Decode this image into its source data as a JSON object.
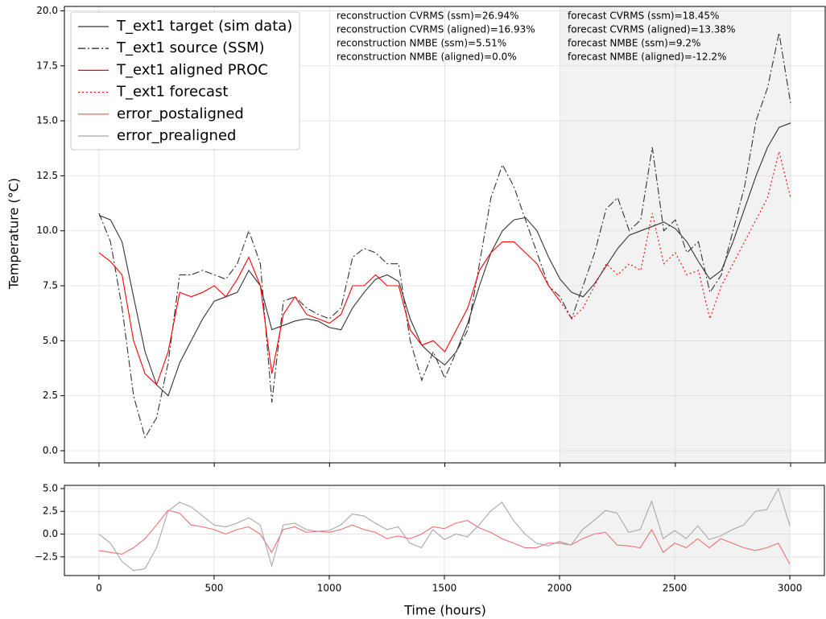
{
  "chart_data": [
    {
      "type": "line",
      "ylabel": "Temperature (°C)",
      "x": [
        0,
        50,
        100,
        150,
        200,
        250,
        300,
        350,
        400,
        450,
        500,
        550,
        600,
        650,
        700,
        750,
        800,
        850,
        900,
        950,
        1000,
        1050,
        1100,
        1150,
        1200,
        1250,
        1300,
        1350,
        1400,
        1450,
        1500,
        1550,
        1600,
        1650,
        1700,
        1750,
        1800,
        1850,
        1900,
        1950,
        2000,
        2050,
        2100,
        2150,
        2200,
        2250,
        2300,
        2350,
        2400,
        2450,
        2500,
        2550,
        2600,
        2650,
        2700,
        2750,
        2800,
        2850,
        2900,
        2950,
        3000
      ],
      "xlim": [
        -150,
        3150
      ],
      "ylim": [
        -0.55,
        20.2
      ],
      "yticks": [
        {
          "value": 0,
          "label": "0.0"
        },
        {
          "value": 2.5,
          "label": "2.5"
        },
        {
          "value": 5,
          "label": "5.0"
        },
        {
          "value": 7.5,
          "label": "7.5"
        },
        {
          "value": 10,
          "label": "10.0"
        },
        {
          "value": 12.5,
          "label": "12.5"
        },
        {
          "value": 15,
          "label": "15.0"
        },
        {
          "value": 17.5,
          "label": "17.5"
        },
        {
          "value": 20,
          "label": "20.0"
        }
      ],
      "grid": true,
      "legend": "upper left",
      "shaded_span": [
        2000,
        3000
      ],
      "series": [
        {
          "name": "T_ext1 target (sim data)",
          "color": "#333333",
          "linestyle": "solid",
          "values": [
            10.7,
            10.5,
            9.5,
            7.0,
            4.5,
            3.0,
            2.5,
            4.0,
            5.0,
            6.0,
            6.8,
            7.0,
            7.2,
            8.2,
            7.5,
            5.5,
            5.7,
            5.9,
            6.0,
            5.9,
            5.6,
            5.5,
            6.5,
            7.2,
            7.8,
            8.0,
            7.7,
            6.0,
            4.8,
            4.3,
            3.9,
            4.5,
            5.8,
            7.5,
            9.0,
            10.0,
            10.5,
            10.6,
            10.0,
            8.8,
            7.8,
            7.2,
            7.0,
            7.6,
            8.4,
            9.2,
            9.8,
            10.0,
            10.2,
            10.4,
            10.1,
            9.5,
            8.6,
            7.8,
            8.2,
            9.5,
            11.0,
            12.5,
            13.8,
            14.7,
            14.9
          ]
        },
        {
          "name": "T_ext1 source (SSM)",
          "color": "#333333",
          "linestyle": "dashdot",
          "values": [
            10.8,
            9.5,
            6.5,
            2.5,
            0.6,
            1.5,
            4.0,
            8.0,
            8.0,
            8.2,
            8.0,
            7.8,
            8.5,
            10.0,
            8.5,
            2.2,
            6.8,
            7.0,
            6.5,
            6.2,
            6.0,
            6.5,
            8.8,
            9.2,
            9.0,
            8.5,
            8.5,
            5.0,
            3.2,
            4.5,
            3.3,
            4.5,
            5.5,
            8.5,
            11.5,
            13.0,
            12.0,
            10.5,
            9.0,
            7.5,
            7.0,
            6.0,
            7.5,
            9.0,
            11.0,
            11.5,
            10.0,
            10.5,
            13.8,
            10.0,
            10.5,
            9.0,
            9.5,
            7.2,
            8.0,
            10.0,
            12.0,
            15.0,
            16.5,
            19.0,
            15.8
          ]
        },
        {
          "name": "T_ext1 aligned PROC",
          "color": "#ff0000",
          "linestyle": "solid",
          "values": [
            9.0,
            8.6,
            8.0,
            5.0,
            3.5,
            3.0,
            4.5,
            7.2,
            7.0,
            7.2,
            7.5,
            7.0,
            7.8,
            8.8,
            7.5,
            3.5,
            6.2,
            7.0,
            6.2,
            6.0,
            5.8,
            6.2,
            7.5,
            7.5,
            8.0,
            7.5,
            7.5,
            5.5,
            4.8,
            5.0,
            4.5,
            5.5,
            6.5,
            8.2,
            9.0,
            9.5,
            9.5,
            9.0,
            8.5,
            7.5,
            6.8,
            null,
            null,
            null,
            null,
            null,
            null,
            null,
            null,
            null,
            null,
            null,
            null,
            null,
            null,
            null,
            null,
            null,
            null,
            null,
            null
          ]
        },
        {
          "name": "T_ext1 forecast",
          "color": "#ff0000",
          "linestyle": "dotted",
          "values": [
            null,
            null,
            null,
            null,
            null,
            null,
            null,
            null,
            null,
            null,
            null,
            null,
            null,
            null,
            null,
            null,
            null,
            null,
            null,
            null,
            null,
            null,
            null,
            null,
            null,
            null,
            null,
            null,
            null,
            null,
            null,
            null,
            null,
            null,
            null,
            null,
            null,
            null,
            null,
            null,
            6.8,
            6.0,
            6.5,
            7.5,
            8.5,
            8.0,
            8.5,
            8.2,
            10.8,
            8.5,
            9.0,
            8.0,
            8.2,
            6.0,
            7.5,
            8.5,
            9.5,
            10.5,
            11.5,
            13.6,
            11.5
          ]
        }
      ],
      "annotations": [
        {
          "text": "reconstruction CVRMS (ssm)=26.94%",
          "color": "#000000"
        },
        {
          "text": "reconstruction CVRMS (aligned)=16.93%",
          "color": "#ff0000"
        },
        {
          "text": "reconstruction NMBE (ssm)=5.51%",
          "color": "#000000"
        },
        {
          "text": "reconstruction NMBE (aligned)=0.0%",
          "color": "#ff0000"
        },
        {
          "text": "forecast CVRMS (ssm)=18.45%",
          "color": "#000000"
        },
        {
          "text": "forecast CVRMS (aligned)=13.38%",
          "color": "#ff0000"
        },
        {
          "text": "forecast NMBE (ssm)=9.2%",
          "color": "#000000"
        },
        {
          "text": "forecast NMBE (aligned)=-12.2%",
          "color": "#ff0000"
        }
      ]
    },
    {
      "type": "line",
      "xlabel": "Time (hours)",
      "x": [
        0,
        50,
        100,
        150,
        200,
        250,
        300,
        350,
        400,
        450,
        500,
        550,
        600,
        650,
        700,
        750,
        800,
        850,
        900,
        950,
        1000,
        1050,
        1100,
        1150,
        1200,
        1250,
        1300,
        1350,
        1400,
        1450,
        1500,
        1550,
        1600,
        1650,
        1700,
        1750,
        1800,
        1850,
        1900,
        1950,
        2000,
        2050,
        2100,
        2150,
        2200,
        2250,
        2300,
        2350,
        2400,
        2450,
        2500,
        2550,
        2600,
        2650,
        2700,
        2750,
        2800,
        2850,
        2900,
        2950,
        3000
      ],
      "xlim": [
        -150,
        3150
      ],
      "ylim": [
        -4.55,
        5.35
      ],
      "xticks": [
        0,
        500,
        1000,
        1500,
        2000,
        2500,
        3000
      ],
      "yticks": [
        {
          "value": -2.5,
          "label": "−2.5"
        },
        {
          "value": 0,
          "label": "0.0"
        },
        {
          "value": 2.5,
          "label": "2.5"
        },
        {
          "value": 5,
          "label": "5.0"
        }
      ],
      "grid": true,
      "shaded_span": [
        2000,
        3000
      ],
      "series": [
        {
          "name": "error_postaligned",
          "color": "#f07070",
          "linestyle": "solid",
          "values": [
            -1.8,
            -2.0,
            -2.2,
            -1.5,
            -0.5,
            1.0,
            2.6,
            2.3,
            1.0,
            0.8,
            0.5,
            0,
            0.5,
            0.8,
            0,
            -2.0,
            0.5,
            0.8,
            0.2,
            0.3,
            0.2,
            0.5,
            1.0,
            0.5,
            0.2,
            -0.5,
            -0.2,
            -0.5,
            0,
            0.8,
            0.6,
            1.2,
            1.5,
            0.7,
            0.2,
            -0.5,
            -1.0,
            -1.5,
            -1.5,
            -1.0,
            -1.0,
            -1.2,
            -0.5,
            0,
            0.2,
            -1.2,
            -1.3,
            -1.5,
            0.5,
            -2.0,
            -1.0,
            -1.5,
            -0.5,
            -1.5,
            -0.5,
            -1.0,
            -1.5,
            -1.8,
            -1.5,
            -1.0,
            -3.3
          ]
        },
        {
          "name": "error_prealigned",
          "color": "#a8a8a8",
          "linestyle": "solid",
          "values": [
            0,
            -1.0,
            -3.0,
            -4.0,
            -3.8,
            -1.5,
            2.5,
            3.5,
            3.0,
            2.0,
            1.0,
            0.8,
            1.2,
            1.8,
            1.0,
            -3.5,
            1.0,
            1.2,
            0.5,
            0.3,
            0.4,
            1.0,
            2.2,
            2.0,
            1.2,
            0.5,
            0.8,
            -1.0,
            -1.5,
            0.5,
            -0.6,
            0,
            -0.3,
            1.0,
            2.5,
            3.5,
            1.5,
            0,
            -1.0,
            -1.3,
            -0.8,
            -1.2,
            0.5,
            1.5,
            2.6,
            2.3,
            0.2,
            0.5,
            3.6,
            -0.5,
            0.4,
            -0.5,
            0.9,
            -0.6,
            -0.2,
            0.5,
            1.0,
            2.5,
            2.7,
            5.0,
            0.9
          ]
        }
      ]
    }
  ]
}
